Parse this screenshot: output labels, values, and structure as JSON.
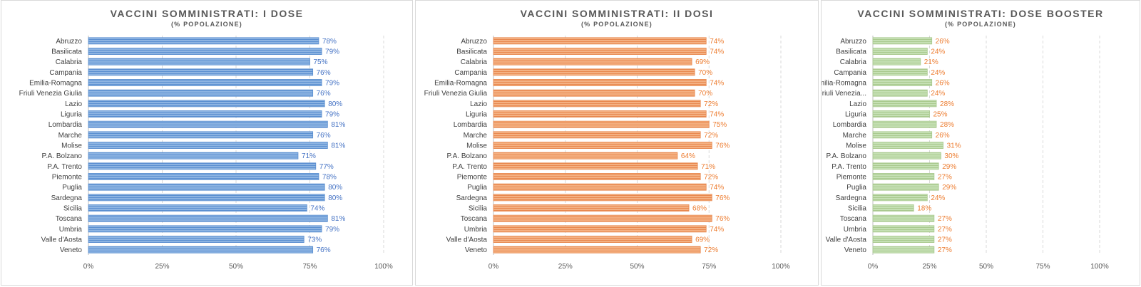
{
  "chart_data": [
    {
      "type": "bar",
      "orientation": "horizontal",
      "title": "VACCINI SOMMINISTRATI: I DOSE",
      "subtitle": "(% POPOLAZIONE)",
      "categories": [
        "Abruzzo",
        "Basilicata",
        "Calabria",
        "Campania",
        "Emilia-Romagna",
        "Friuli Venezia Giulia",
        "Lazio",
        "Liguria",
        "Lombardia",
        "Marche",
        "Molise",
        "P.A. Bolzano",
        "P.A. Trento",
        "Piemonte",
        "Puglia",
        "Sardegna",
        "Sicilia",
        "Toscana",
        "Umbria",
        "Valle d'Aosta",
        "Veneto"
      ],
      "values": [
        78,
        79,
        75,
        76,
        79,
        76,
        80,
        79,
        81,
        76,
        81,
        71,
        77,
        78,
        80,
        80,
        74,
        81,
        79,
        73,
        76
      ],
      "value_labels": [
        "78%",
        "79%",
        "75%",
        "76%",
        "79%",
        "76%",
        "80%",
        "79%",
        "81%",
        "76%",
        "81%",
        "71%",
        "77%",
        "78%",
        "80%",
        "80%",
        "74%",
        "81%",
        "79%",
        "73%",
        "76%"
      ],
      "xlim": [
        0,
        100
      ],
      "x_ticks": [
        0,
        25,
        50,
        75,
        100
      ],
      "x_tick_labels": [
        "0%",
        "25%",
        "50%",
        "75%",
        "100%"
      ],
      "grid": true,
      "legend": "none",
      "bar_color": "#8db4e2",
      "bar_stripe": "#5b8fd0",
      "label_color": "#4472c4"
    },
    {
      "type": "bar",
      "orientation": "horizontal",
      "title": "VACCINI SOMMINISTRATI: II DOSI",
      "subtitle": "(% POPOLAZIONE)",
      "categories": [
        "Abruzzo",
        "Basilicata",
        "Calabria",
        "Campania",
        "Emilia-Romagna",
        "Friuli Venezia Giulia",
        "Lazio",
        "Liguria",
        "Lombardia",
        "Marche",
        "Molise",
        "P.A. Bolzano",
        "P.A. Trento",
        "Piemonte",
        "Puglia",
        "Sardegna",
        "Sicilia",
        "Toscana",
        "Umbria",
        "Valle d'Aosta",
        "Veneto"
      ],
      "values": [
        74,
        74,
        69,
        70,
        74,
        70,
        72,
        74,
        75,
        72,
        76,
        64,
        71,
        72,
        74,
        76,
        68,
        76,
        74,
        69,
        72
      ],
      "value_labels": [
        "74%",
        "74%",
        "69%",
        "70%",
        "74%",
        "70%",
        "72%",
        "74%",
        "75%",
        "72%",
        "76%",
        "64%",
        "71%",
        "72%",
        "74%",
        "76%",
        "68%",
        "76%",
        "74%",
        "69%",
        "72%"
      ],
      "xlim": [
        0,
        100
      ],
      "x_ticks": [
        0,
        25,
        50,
        75,
        100
      ],
      "x_tick_labels": [
        "0%",
        "25%",
        "50%",
        "75%",
        "100%"
      ],
      "grid": true,
      "legend": "none",
      "bar_color": "#f4b183",
      "bar_stripe": "#e8884f",
      "label_color": "#ed7d31"
    },
    {
      "type": "bar",
      "orientation": "horizontal",
      "title": "VACCINI SOMMINISTRATI: DOSE BOOSTER",
      "subtitle": "(% POPOLAZIONE)",
      "categories": [
        "Abruzzo",
        "Basilicata",
        "Calabria",
        "Campania",
        "Emilia-Romagna",
        "Friuli Venezia...",
        "Lazio",
        "Liguria",
        "Lombardia",
        "Marche",
        "Molise",
        "P.A. Bolzano",
        "P.A. Trento",
        "Piemonte",
        "Puglia",
        "Sardegna",
        "Sicilia",
        "Toscana",
        "Umbria",
        "Valle d'Aosta",
        "Veneto"
      ],
      "values": [
        26,
        24,
        21,
        24,
        26,
        24,
        28,
        25,
        28,
        26,
        31,
        30,
        29,
        27,
        29,
        24,
        18,
        27,
        27,
        27,
        27
      ],
      "value_labels": [
        "26%",
        "24%",
        "21%",
        "24%",
        "26%",
        "24%",
        "28%",
        "25%",
        "28%",
        "26%",
        "31%",
        "30%",
        "29%",
        "27%",
        "29%",
        "24%",
        "18%",
        "27%",
        "27%",
        "27%",
        "27%"
      ],
      "xlim": [
        0,
        100
      ],
      "x_ticks": [
        0,
        25,
        50,
        75,
        100
      ],
      "x_tick_labels": [
        "0%",
        "25%",
        "50%",
        "75%",
        "100%"
      ],
      "grid": true,
      "legend": "none",
      "bar_color": "#c5e0b4",
      "bar_stripe": "#a9c98e",
      "label_color": "#ed7d31"
    }
  ]
}
